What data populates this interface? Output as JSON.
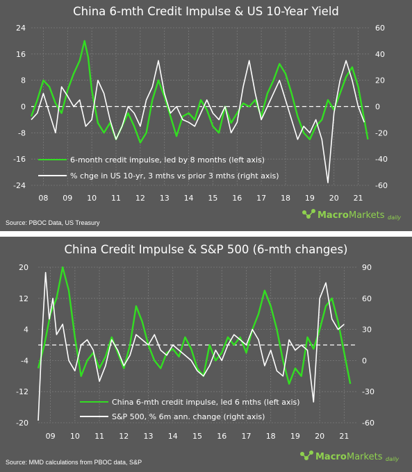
{
  "charts": [
    {
      "title": "China 6-mth Credit Impulse & US 10-Year Yield",
      "source": "Source:  PBOC Data, US Treasury",
      "brand": {
        "name_a": "Macro",
        "name_b": "Markets",
        "suffix": "daily"
      }
    },
    {
      "title": "China Credit Impulse & S&P 500 (6-mth changes)",
      "source": "Source:  MMD calculations from PBOC data, S&P",
      "brand": {
        "name_a": "Macro",
        "name_b": "Markets",
        "suffix": "daily"
      }
    }
  ],
  "colors": {
    "background": "#595959",
    "impulse": "#33dd22",
    "white": "#ffffff",
    "brand_green": "#8fd14f"
  },
  "chart_data": [
    {
      "type": "line",
      "title": "China 6-mth Credit Impulse & US 10-Year Yield",
      "x_ticks": [
        "08",
        "09",
        "10",
        "11",
        "12",
        "13",
        "14",
        "15",
        "16",
        "17",
        "18",
        "19",
        "20",
        "21"
      ],
      "xlim": [
        2008.0,
        2022.0
      ],
      "y_left": {
        "ticks": [
          24,
          16,
          8,
          0,
          -8,
          -16,
          -24
        ],
        "lim": [
          -24,
          24
        ]
      },
      "y_right": {
        "ticks": [
          60,
          40,
          20,
          0,
          -20,
          -40,
          -60
        ],
        "lim": [
          -60,
          60
        ]
      },
      "zero_line": "dashed",
      "legend_position": "bottom-center",
      "series": [
        {
          "name": "6-month credit impulse, led by 8 months (left axis)",
          "axis": "left",
          "color": "#33dd22",
          "x": [
            2008.0,
            2008.25,
            2008.5,
            2008.75,
            2009.0,
            2009.25,
            2009.5,
            2009.75,
            2010.0,
            2010.2,
            2010.35,
            2010.5,
            2010.75,
            2011.0,
            2011.25,
            2011.5,
            2011.75,
            2012.0,
            2012.25,
            2012.5,
            2012.75,
            2013.0,
            2013.25,
            2013.5,
            2013.75,
            2014.0,
            2014.25,
            2014.5,
            2014.75,
            2015.0,
            2015.25,
            2015.5,
            2015.75,
            2016.0,
            2016.25,
            2016.5,
            2016.75,
            2017.0,
            2017.25,
            2017.5,
            2017.75,
            2018.0,
            2018.25,
            2018.5,
            2018.75,
            2019.0,
            2019.25,
            2019.5,
            2019.75,
            2020.0,
            2020.25,
            2020.5,
            2020.75,
            2021.0,
            2021.25,
            2021.5,
            2021.75,
            2021.9
          ],
          "y": [
            -3,
            2,
            8,
            6,
            1,
            -2,
            5,
            10,
            14,
            20,
            15,
            5,
            -5,
            -8,
            -5,
            -10,
            -6,
            -2,
            -6,
            -11,
            -8,
            2,
            8,
            3,
            -3,
            -9,
            -3,
            -2,
            -4,
            2,
            -1,
            -6,
            -8,
            0,
            -5,
            -2,
            1,
            0,
            2,
            -3,
            4,
            8,
            13,
            10,
            4,
            -3,
            -8,
            -10,
            -6,
            -4,
            2,
            -1,
            4,
            9,
            12,
            6,
            -4,
            -10
          ]
        },
        {
          "name": "% chge in US 10-yr, 3 mths vs prior 3 mths (right axis)",
          "axis": "right",
          "color": "#ffffff",
          "x": [
            2008.0,
            2008.25,
            2008.5,
            2008.75,
            2009.0,
            2009.25,
            2009.5,
            2009.75,
            2010.0,
            2010.25,
            2010.5,
            2010.75,
            2011.0,
            2011.25,
            2011.5,
            2011.75,
            2012.0,
            2012.25,
            2012.5,
            2012.75,
            2013.0,
            2013.25,
            2013.5,
            2013.75,
            2014.0,
            2014.25,
            2014.5,
            2014.75,
            2015.0,
            2015.25,
            2015.5,
            2015.75,
            2016.0,
            2016.25,
            2016.5,
            2016.75,
            2017.0,
            2017.25,
            2017.5,
            2017.75,
            2018.0,
            2018.25,
            2018.5,
            2018.75,
            2019.0,
            2019.25,
            2019.5,
            2019.75,
            2020.0,
            2020.25,
            2020.5,
            2020.75,
            2021.0,
            2021.25,
            2021.5,
            2021.75
          ],
          "y": [
            -10,
            -5,
            10,
            -5,
            -20,
            15,
            8,
            0,
            5,
            -15,
            -10,
            20,
            10,
            -10,
            -25,
            -15,
            0,
            -5,
            -15,
            5,
            15,
            35,
            10,
            -5,
            0,
            -10,
            -12,
            -15,
            -5,
            5,
            -5,
            -10,
            0,
            -20,
            -12,
            15,
            35,
            10,
            -10,
            0,
            10,
            20,
            5,
            -10,
            -25,
            -15,
            -20,
            -10,
            -25,
            -58,
            -5,
            20,
            35,
            20,
            0,
            -12
          ]
        }
      ]
    },
    {
      "type": "line",
      "title": "China Credit Impulse & S&P 500 (6-mth changes)",
      "x_ticks": [
        "09",
        "10",
        "11",
        "12",
        "13",
        "14",
        "15",
        "16",
        "17",
        "18",
        "19",
        "20",
        "21"
      ],
      "xlim": [
        2009.0,
        2022.0
      ],
      "y_left": {
        "ticks": [
          20,
          12,
          4,
          -4,
          -12,
          -20
        ],
        "lim": [
          -20,
          20
        ]
      },
      "y_right": {
        "ticks": [
          90,
          60,
          30,
          0,
          -30,
          -60
        ],
        "lim": [
          -60,
          90
        ]
      },
      "zero_line": "dashed",
      "legend_position": "bottom-center",
      "series": [
        {
          "name": "China 6-mth credit impulse, led 6 mths (left axis)",
          "axis": "left",
          "color": "#33dd22",
          "x": [
            2009.0,
            2009.25,
            2009.5,
            2009.75,
            2010.0,
            2010.25,
            2010.5,
            2010.75,
            2011.0,
            2011.25,
            2011.5,
            2011.75,
            2012.0,
            2012.25,
            2012.5,
            2012.75,
            2013.0,
            2013.25,
            2013.5,
            2013.75,
            2014.0,
            2014.25,
            2014.5,
            2014.75,
            2015.0,
            2015.25,
            2015.5,
            2015.75,
            2016.0,
            2016.25,
            2016.5,
            2016.75,
            2017.0,
            2017.25,
            2017.5,
            2017.75,
            2018.0,
            2018.25,
            2018.5,
            2018.75,
            2019.0,
            2019.25,
            2019.5,
            2019.75,
            2020.0,
            2020.25,
            2020.5,
            2020.75,
            2021.0,
            2021.25,
            2021.5,
            2021.75
          ],
          "y": [
            -6,
            0,
            8,
            12,
            20,
            14,
            2,
            -8,
            -4,
            -2,
            -6,
            -3,
            2,
            -2,
            -6,
            0,
            10,
            6,
            0,
            -4,
            -6,
            -2,
            -1,
            -3,
            2,
            -1,
            -6,
            -8,
            0,
            -4,
            -2,
            2,
            0,
            2,
            -2,
            4,
            8,
            14,
            10,
            4,
            -4,
            -10,
            -6,
            -8,
            2,
            -1,
            4,
            10,
            12,
            6,
            -2,
            -10
          ]
        },
        {
          "name": "S&P 500,  % 6m ann. change (right axis)",
          "axis": "right",
          "color": "#ffffff",
          "x": [
            2009.0,
            2009.15,
            2009.3,
            2009.45,
            2009.6,
            2009.75,
            2010.0,
            2010.25,
            2010.5,
            2010.75,
            2011.0,
            2011.25,
            2011.5,
            2011.75,
            2012.0,
            2012.25,
            2012.5,
            2012.75,
            2013.0,
            2013.25,
            2013.5,
            2013.75,
            2014.0,
            2014.25,
            2014.5,
            2014.75,
            2015.0,
            2015.25,
            2015.5,
            2015.75,
            2016.0,
            2016.25,
            2016.5,
            2016.75,
            2017.0,
            2017.25,
            2017.5,
            2017.75,
            2018.0,
            2018.25,
            2018.5,
            2018.75,
            2019.0,
            2019.25,
            2019.5,
            2019.75,
            2020.0,
            2020.25,
            2020.5,
            2020.75,
            2021.0,
            2021.25,
            2021.5
          ],
          "y": [
            -58,
            20,
            85,
            40,
            60,
            25,
            35,
            0,
            -10,
            15,
            20,
            10,
            -20,
            -5,
            20,
            10,
            -5,
            5,
            25,
            20,
            15,
            25,
            10,
            5,
            15,
            10,
            5,
            0,
            -10,
            -15,
            -5,
            10,
            0,
            15,
            25,
            20,
            15,
            30,
            20,
            -5,
            10,
            -10,
            -15,
            20,
            10,
            15,
            10,
            -40,
            60,
            75,
            40,
            30,
            35
          ]
        }
      ]
    }
  ]
}
